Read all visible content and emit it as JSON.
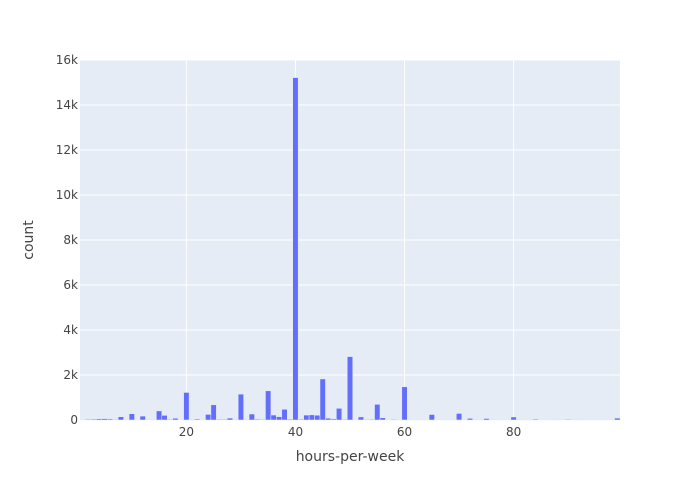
{
  "chart_data": {
    "type": "bar",
    "title": "",
    "xlabel": "hours-per-week",
    "ylabel": "count",
    "xlim": [
      0.5,
      99.5
    ],
    "ylim": [
      0,
      16000
    ],
    "bar_width": 1,
    "x_ticks": [
      20,
      40,
      60,
      80
    ],
    "x_tick_labels": [
      "20",
      "40",
      "60",
      "80"
    ],
    "y_ticks": [
      0,
      2000,
      4000,
      6000,
      8000,
      10000,
      12000,
      14000,
      16000
    ],
    "y_tick_labels": [
      "0",
      "2k",
      "4k",
      "6k",
      "8k",
      "10k",
      "12k",
      "14k",
      "16k"
    ],
    "grid": true,
    "bar_color": "#636efa",
    "plot_bg": "#e5ecf6",
    "x": [
      1,
      2,
      3,
      4,
      5,
      6,
      7,
      8,
      9,
      10,
      11,
      12,
      13,
      14,
      15,
      16,
      17,
      18,
      19,
      20,
      21,
      22,
      23,
      24,
      25,
      26,
      27,
      28,
      29,
      30,
      31,
      32,
      33,
      34,
      35,
      36,
      37,
      38,
      39,
      40,
      41,
      42,
      43,
      44,
      45,
      46,
      47,
      48,
      49,
      50,
      51,
      52,
      53,
      54,
      55,
      56,
      57,
      58,
      59,
      60,
      61,
      62,
      63,
      64,
      65,
      66,
      67,
      68,
      69,
      70,
      71,
      72,
      73,
      74,
      75,
      76,
      77,
      78,
      79,
      80,
      81,
      82,
      83,
      84,
      85,
      86,
      87,
      88,
      89,
      90,
      91,
      92,
      93,
      94,
      95,
      96,
      97,
      98,
      99
    ],
    "values": [
      20,
      32,
      39,
      54,
      60,
      46,
      26,
      145,
      18,
      278,
      11,
      173,
      23,
      10,
      404,
      205,
      29,
      75,
      14,
      1224,
      24,
      44,
      21,
      248,
      674,
      30,
      30,
      86,
      7,
      1149,
      5,
      266,
      39,
      28,
      1297,
      220,
      149,
      476,
      38,
      15217,
      36,
      219,
      228,
      212,
      1824,
      82,
      49,
      517,
      29,
      2819,
      13,
      138,
      25,
      30,
      694,
      97,
      17,
      28,
      5,
      1475,
      2,
      23,
      10,
      17,
      244,
      17,
      2,
      14,
      2,
      291,
      1,
      71,
      2,
      3,
      66,
      3,
      1,
      15,
      1,
      133,
      3,
      1,
      3,
      38,
      13,
      2,
      1,
      3,
      3,
      29,
      3,
      3,
      1,
      3,
      2,
      5,
      1,
      11,
      85
    ]
  }
}
